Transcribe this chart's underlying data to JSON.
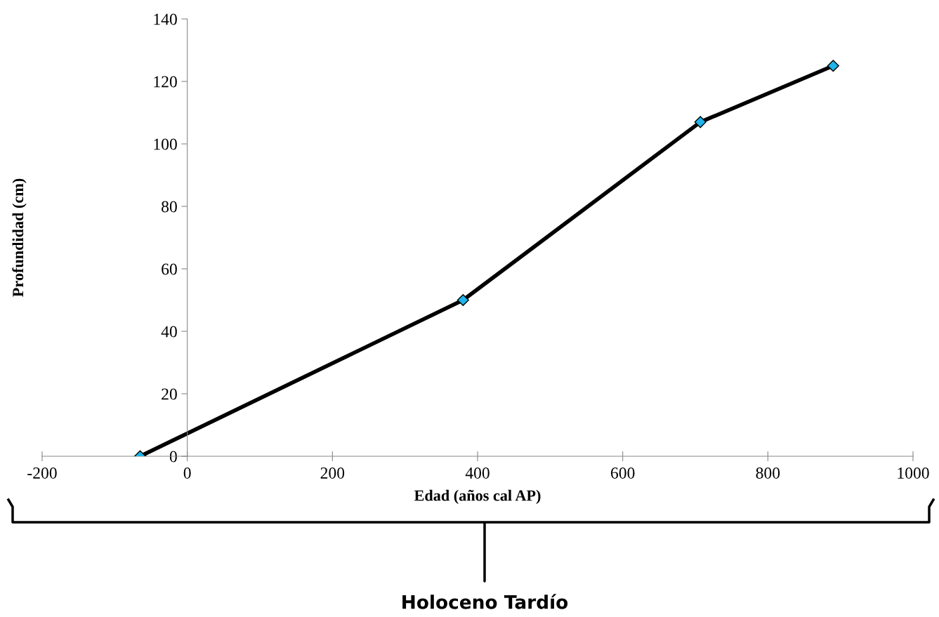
{
  "chart_data": {
    "type": "line",
    "xlabel": "Edad (años cal AP)",
    "ylabel": "Profundidad (cm)",
    "x": [
      -65,
      380,
      707,
      890
    ],
    "series": [
      {
        "color": "#000000",
        "colors": [
          "#1fb4ea",
          "#1fb4ea",
          "#1fb4ea",
          "#1fb4ea"
        ],
        "values": [
          0,
          50,
          107,
          125
        ]
      }
    ],
    "xlim": [
      -200,
      1000
    ],
    "xticks": [
      -200,
      0,
      200,
      400,
      600,
      800,
      1000
    ],
    "ylim": [
      0,
      140
    ],
    "yticks": [
      0,
      20,
      40,
      60,
      80,
      100,
      120,
      140
    ],
    "marker": "diamond",
    "line_style": "solid",
    "grid": false,
    "legend": false,
    "annotations": [
      "Holoceno Tardío"
    ]
  }
}
